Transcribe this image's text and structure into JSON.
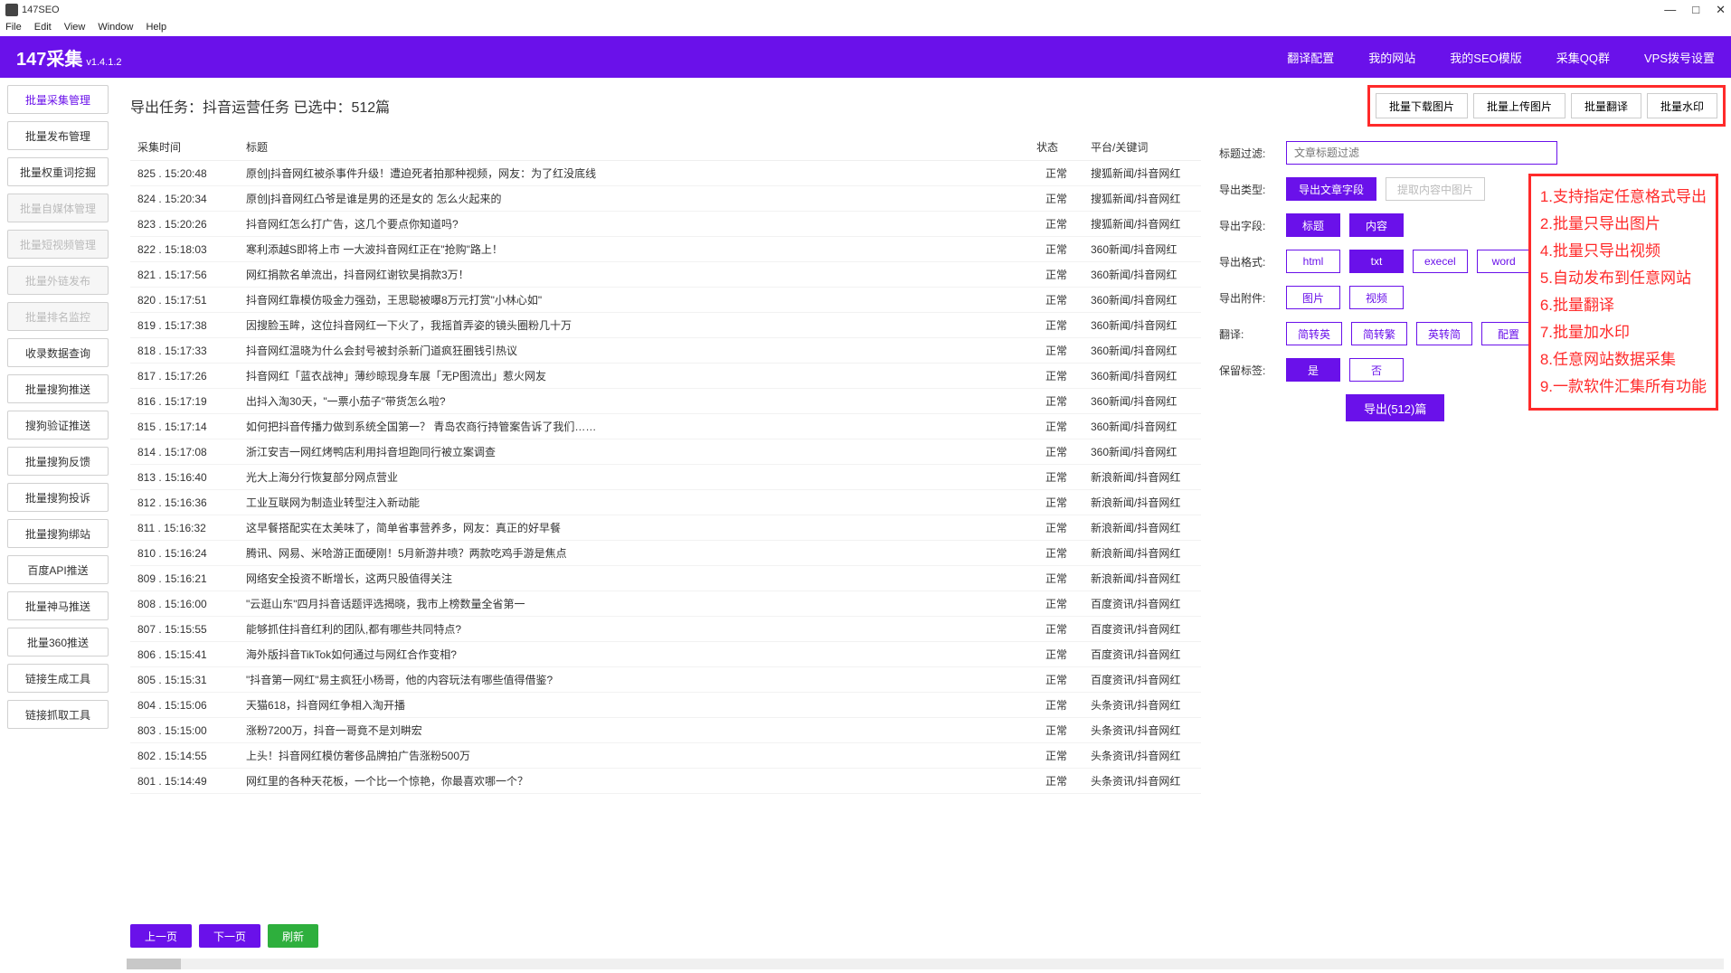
{
  "window": {
    "title": "147SEO",
    "controls": {
      "min": "—",
      "max": "□",
      "close": "✕"
    }
  },
  "menu": [
    "File",
    "Edit",
    "View",
    "Window",
    "Help"
  ],
  "brand": {
    "name": "147采集",
    "version": "v1.4.1.2"
  },
  "topnav": [
    "翻译配置",
    "我的网站",
    "我的SEO模版",
    "采集QQ群",
    "VPS拨号设置"
  ],
  "sidebar": [
    {
      "label": "批量采集管理",
      "cls": "active"
    },
    {
      "label": "批量发布管理"
    },
    {
      "label": "批量权重词挖掘"
    },
    {
      "label": "批量自媒体管理",
      "cls": "dim"
    },
    {
      "label": "批量短视频管理",
      "cls": "dim"
    },
    {
      "label": "批量外链发布",
      "cls": "dim"
    },
    {
      "label": "批量排名监控",
      "cls": "dim"
    },
    {
      "label": "收录数据查询"
    },
    {
      "label": "批量搜狗推送"
    },
    {
      "label": "搜狗验证推送"
    },
    {
      "label": "批量搜狗反馈"
    },
    {
      "label": "批量搜狗投诉"
    },
    {
      "label": "批量搜狗绑站"
    },
    {
      "label": "百度API推送"
    },
    {
      "label": "批量神马推送"
    },
    {
      "label": "批量360推送"
    },
    {
      "label": "链接生成工具"
    },
    {
      "label": "链接抓取工具"
    }
  ],
  "header": {
    "title": "导出任务：抖音运营任务 已选中：512篇",
    "buttons": [
      "批量下载图片",
      "批量上传图片",
      "批量翻译",
      "批量水印"
    ]
  },
  "columns": [
    "采集时间",
    "标题",
    "状态",
    "平台/关键词"
  ],
  "rows": [
    {
      "t": "825 . 15:20:48",
      "title": "原创|抖音网红被杀事件升级！遭迫死者拍那种视频，网友：为了红没底线",
      "s": "正常",
      "p": "搜狐新闻/抖音网红"
    },
    {
      "t": "824 . 15:20:34",
      "title": "原创|抖音网红凸爷是谁是男的还是女的 怎么火起来的",
      "s": "正常",
      "p": "搜狐新闻/抖音网红"
    },
    {
      "t": "823 . 15:20:26",
      "title": "抖音网红怎么打广告，这几个要点你知道吗?",
      "s": "正常",
      "p": "搜狐新闻/抖音网红"
    },
    {
      "t": "822 . 15:18:03",
      "title": "寒利添越S即将上市 一大波抖音网红正在\"抢购\"路上！",
      "s": "正常",
      "p": "360新闻/抖音网红"
    },
    {
      "t": "821 . 15:17:56",
      "title": "网红捐款名单流出，抖音网红谢钦昊捐款3万！",
      "s": "正常",
      "p": "360新闻/抖音网红"
    },
    {
      "t": "820 . 15:17:51",
      "title": "抖音网红靠模仿吸金力强劲，王思聪被曝8万元打赏\"小林心如\"",
      "s": "正常",
      "p": "360新闻/抖音网红"
    },
    {
      "t": "819 . 15:17:38",
      "title": "因搜脸玉眸，这位抖音网红一下火了，我摇首弄姿的镜头圈粉几十万",
      "s": "正常",
      "p": "360新闻/抖音网红"
    },
    {
      "t": "818 . 15:17:33",
      "title": "抖音网红温晓为什么会封号被封杀新门道疯狂圈钱引热议",
      "s": "正常",
      "p": "360新闻/抖音网红"
    },
    {
      "t": "817 . 15:17:26",
      "title": "抖音网红「蓝衣战神」薄纱晾现身车展「无P图流出」惹火网友",
      "s": "正常",
      "p": "360新闻/抖音网红"
    },
    {
      "t": "816 . 15:17:19",
      "title": "出抖入淘30天，\"一票小茄子\"带货怎么啦?",
      "s": "正常",
      "p": "360新闻/抖音网红"
    },
    {
      "t": "815 . 15:17:14",
      "title": "如何把抖音传播力做到系统全国第一？ 青岛农商行持管案告诉了我们……",
      "s": "正常",
      "p": "360新闻/抖音网红"
    },
    {
      "t": "814 . 15:17:08",
      "title": "浙江安吉一网红烤鸭店利用抖音坦跑同行被立案调查",
      "s": "正常",
      "p": "360新闻/抖音网红"
    },
    {
      "t": "813 . 15:16:40",
      "title": "光大上海分行恢复部分网点营业",
      "s": "正常",
      "p": "新浪新闻/抖音网红"
    },
    {
      "t": "812 . 15:16:36",
      "title": "工业互联网为制造业转型注入新动能",
      "s": "正常",
      "p": "新浪新闻/抖音网红"
    },
    {
      "t": "811 . 15:16:32",
      "title": "这早餐搭配实在太美味了，简单省事营养多，网友：真正的好早餐",
      "s": "正常",
      "p": "新浪新闻/抖音网红"
    },
    {
      "t": "810 . 15:16:24",
      "title": "腾讯、网易、米哈游正面硬刚！5月新游井喷？两款吃鸡手游是焦点",
      "s": "正常",
      "p": "新浪新闻/抖音网红"
    },
    {
      "t": "809 . 15:16:21",
      "title": "网络安全投资不断增长，这两只股值得关注",
      "s": "正常",
      "p": "新浪新闻/抖音网红"
    },
    {
      "t": "808 . 15:16:00",
      "title": "\"云逛山东\"四月抖音话题评选揭晓，我市上榜数量全省第一",
      "s": "正常",
      "p": "百度资讯/抖音网红"
    },
    {
      "t": "807 . 15:15:55",
      "title": "能够抓住抖音红利的团队,都有哪些共同特点?",
      "s": "正常",
      "p": "百度资讯/抖音网红"
    },
    {
      "t": "806 . 15:15:41",
      "title": "海外版抖音TikTok如何通过与网红合作变相?",
      "s": "正常",
      "p": "百度资讯/抖音网红"
    },
    {
      "t": "805 . 15:15:31",
      "title": "\"抖音第一网红\"易主疯狂小杨哥，他的内容玩法有哪些值得借鉴?",
      "s": "正常",
      "p": "百度资讯/抖音网红"
    },
    {
      "t": "804 . 15:15:06",
      "title": "天猫618，抖音网红争相入淘开播",
      "s": "正常",
      "p": "头条资讯/抖音网红"
    },
    {
      "t": "803 . 15:15:00",
      "title": "涨粉7200万，抖音一哥竟不是刘畊宏",
      "s": "正常",
      "p": "头条资讯/抖音网红"
    },
    {
      "t": "802 . 15:14:55",
      "title": "上头！抖音网红模仿奢侈品牌拍广告涨粉500万",
      "s": "正常",
      "p": "头条资讯/抖音网红"
    },
    {
      "t": "801 . 15:14:49",
      "title": "网红里的各种天花板，一个比一个惊艳，你最喜欢哪一个？",
      "s": "正常",
      "p": "头条资讯/抖音网红"
    }
  ],
  "pager": {
    "prev": "上一页",
    "next": "下一页",
    "refresh": "刷新"
  },
  "panel": {
    "title_filter_label": "标题过滤:",
    "title_filter_placeholder": "文章标题过滤",
    "export_type_label": "导出类型:",
    "export_type_opts": [
      {
        "t": "导出文章字段",
        "fill": true
      },
      {
        "t": "提取内容中图片",
        "gray": true
      }
    ],
    "export_field_label": "导出字段:",
    "export_field_opts": [
      {
        "t": "标题",
        "fill": true
      },
      {
        "t": "内容",
        "fill": true
      }
    ],
    "export_fmt_label": "导出格式:",
    "export_fmt_opts": [
      {
        "t": "html"
      },
      {
        "t": "txt",
        "fill": true
      },
      {
        "t": "execel"
      },
      {
        "t": "word"
      }
    ],
    "export_attach_label": "导出附件:",
    "export_attach_opts": [
      {
        "t": "图片"
      },
      {
        "t": "视频"
      }
    ],
    "translate_label": "翻译:",
    "translate_opts": [
      {
        "t": "简转英"
      },
      {
        "t": "简转繁"
      },
      {
        "t": "英转简"
      },
      {
        "t": "配置"
      }
    ],
    "keep_tag_label": "保留标签:",
    "keep_tag_opts": [
      {
        "t": "是",
        "fill": true
      },
      {
        "t": "否"
      }
    ],
    "export_button": "导出(512)篇"
  },
  "callout": [
    "1.支持指定任意格式导出",
    "2.批量只导出图片",
    "4.批量只导出视频",
    "5.自动发布到任意网站",
    "6.批量翻译",
    "7.批量加水印",
    "8.任意网站数据采集",
    "9.一款软件汇集所有功能"
  ]
}
